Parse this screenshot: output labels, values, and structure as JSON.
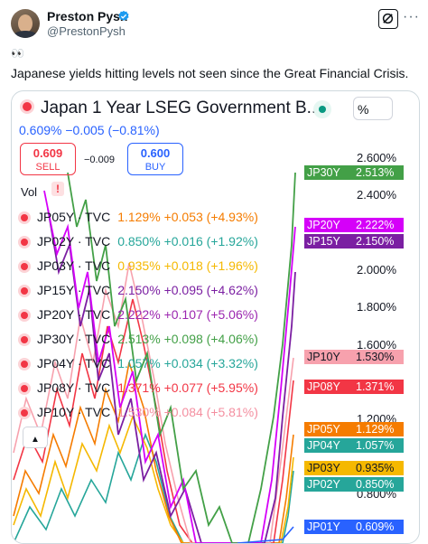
{
  "post": {
    "author_name": "Preston Pysh",
    "author_handle": "@PrestonPysh",
    "more": "···",
    "emoji": "👀",
    "text": "Japanese yields hitting levels not seen since the Great Financial Crisis."
  },
  "chart_header": {
    "title": "Japan 1 Year LSEG Government B...",
    "scale_button": "%",
    "change_line": "0.609%  −0.005 (−0.81%)",
    "sell_price": "0.609",
    "sell_label": "SELL",
    "spread": "−0.009",
    "buy_price": "0.600",
    "buy_label": "BUY",
    "vol_label": "Vol",
    "vol_flag": "!"
  },
  "legend": [
    {
      "symbol": "JP05Y · TVC",
      "value": "1.129%",
      "change": "+0.053 (+4.93%)",
      "color": "#f57c00"
    },
    {
      "symbol": "JP02Y · TVC",
      "value": "0.850%",
      "change": "+0.016 (+1.92%)",
      "color": "#26a69a"
    },
    {
      "symbol": "JP03Y · TVC",
      "value": "0.935%",
      "change": "+0.018 (+1.96%)",
      "color": "#f5b800"
    },
    {
      "symbol": "JP15Y · TVC",
      "value": "2.150%",
      "change": "+0.095 (+4.62%)",
      "color": "#7b1fa2"
    },
    {
      "symbol": "JP20Y · TVC",
      "value": "2.222%",
      "change": "+0.107 (+5.06%)",
      "color": "#9c27b0"
    },
    {
      "symbol": "JP30Y · TVC",
      "value": "2.513%",
      "change": "+0.098 (+4.06%)",
      "color": "#43a047"
    },
    {
      "symbol": "JP04Y · TVC",
      "value": "1.057%",
      "change": "+0.034 (+3.32%)",
      "color": "#26a69a"
    },
    {
      "symbol": "JP08Y · TVC",
      "value": "1.371%",
      "change": "+0.077 (+5.95%)",
      "color": "#f23645"
    },
    {
      "symbol": "JP10Y · TVC",
      "value": "1.530%",
      "change": "+0.084 (+5.81%)",
      "color": "#f48fa0"
    }
  ],
  "collapse_icon": "▲",
  "y_axis": [
    "2.600%",
    "2.400%",
    "2.000%",
    "1.800%",
    "1.600%",
    "1.200%",
    "0.800%"
  ],
  "price_tags": [
    {
      "symbol": "JP30Y",
      "value": "2.513%",
      "color": "#43a047"
    },
    {
      "symbol": "JP20Y",
      "value": "2.222%",
      "color": "#d500f9"
    },
    {
      "symbol": "JP15Y",
      "value": "2.150%",
      "color": "#7b1fa2"
    },
    {
      "symbol": "JP10Y",
      "value": "1.530%",
      "color": "#f7a1ad",
      "text_color": "#131722"
    },
    {
      "symbol": "JP08Y",
      "value": "1.371%",
      "color": "#f23645"
    },
    {
      "symbol": "JP05Y",
      "value": "1.129%",
      "color": "#f57c00"
    },
    {
      "symbol": "JP04Y",
      "value": "1.057%",
      "color": "#26a69a"
    },
    {
      "symbol": "JP03Y",
      "value": "0.935%",
      "color": "#f5b800",
      "text_color": "#131722"
    },
    {
      "symbol": "JP02Y",
      "value": "0.850%",
      "color": "#26a69a"
    },
    {
      "symbol": "JP01Y",
      "value": "0.609%",
      "color": "#2962ff"
    }
  ]
}
